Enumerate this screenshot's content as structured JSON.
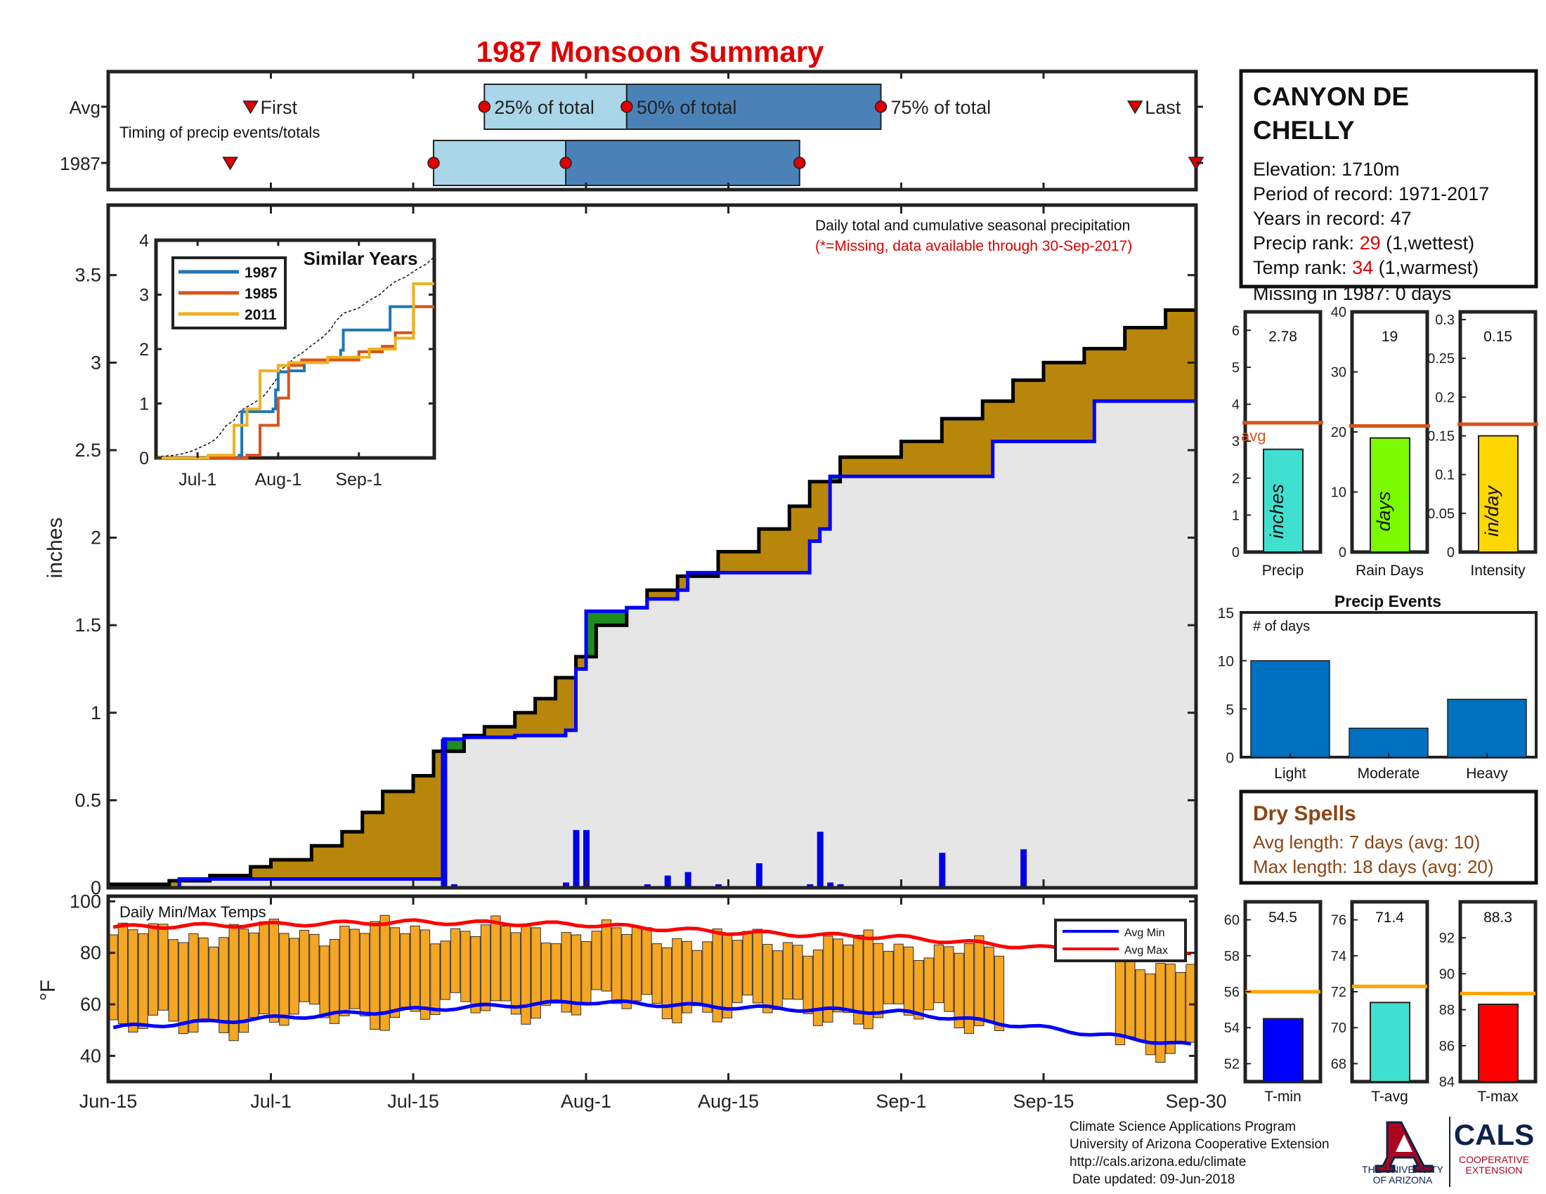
{
  "title": "1987 Monsoon Summary",
  "timing": {
    "avg_label": "Avg",
    "year_label": "1987",
    "caption": "Timing of precip events/totals",
    "first_label": "First",
    "last_label": "Last",
    "p25_label": "25% of total",
    "p50_label": "50% of total",
    "p75_label": "75% of total",
    "avg_dates": {
      "first": "2017-06-29",
      "p25": "2017-07-22",
      "p50": "2017-08-05",
      "p75": "2017-08-30",
      "last": "2017-09-24"
    },
    "year_dates": {
      "first": "2017-06-27",
      "p25": "2017-07-17",
      "p50": "2017-07-30",
      "p75": "2017-08-22",
      "last": "2017-09-30"
    },
    "colors": {
      "q1": "#a9d6e8",
      "q2": "#4a82b8",
      "marker": "#e00000"
    }
  },
  "station": {
    "name_line1": "CANYON DE",
    "name_line2": "CHELLY",
    "elevation": "Elevation: 1710m",
    "period": "Period of record: 1971-2017",
    "years": "Years in record: 47",
    "precip_rank_label": "Precip rank: ",
    "precip_rank": "29",
    "precip_rank_note": " (1,wettest)",
    "temp_rank_label": "Temp rank: ",
    "temp_rank": "34",
    "temp_rank_note": " (1,warmest)",
    "missing": "Missing in 1987: 0 days"
  },
  "main_chart": {
    "note1": "Daily total and cumulative seasonal precipitation",
    "note2": "(*=Missing, data available through 30-Sep-2017)",
    "ylabel": "inches",
    "y_ticks": [
      "0",
      "0.5",
      "1",
      "1.5",
      "2",
      "2.5",
      "3",
      "3.5"
    ],
    "x_ticks": [
      "Jun-15",
      "Jul-1",
      "Jul-15",
      "Aug-1",
      "Aug-15",
      "Sep-1",
      "Sep-15",
      "Sep-30"
    ],
    "colors": {
      "above": "#b8860b",
      "below": "#1e8c1e",
      "fill": "#e6e6e6",
      "line": "#0000ff",
      "avg": "#000000",
      "bars": "#0000e6"
    }
  },
  "similar_years": {
    "title": "Similar Years",
    "legend": [
      "1987",
      "1985",
      "2011"
    ],
    "colors": [
      "#1f77b4",
      "#d95319",
      "#edb120"
    ],
    "y_ticks": [
      "0",
      "1",
      "2",
      "3",
      "4"
    ],
    "x_ticks": [
      "Jul-1",
      "Aug-1",
      "Sep-1"
    ]
  },
  "temp_chart": {
    "label": "Daily Min/Max Temps",
    "ylabel": "°F",
    "y_ticks": [
      "40",
      "60",
      "80",
      "100"
    ],
    "legend_min": "Avg Min",
    "legend_max": "Avg Max",
    "colors": {
      "bars": "#f5a623",
      "min": "#0000ff",
      "max": "#ff0000"
    }
  },
  "small_bars": [
    {
      "label": "Precip",
      "value_text": "2.78",
      "bar_label": "inches",
      "avg_label": "avg",
      "y_ticks": [
        "0",
        "1",
        "2",
        "3",
        "4",
        "5",
        "6"
      ],
      "color": "#40e0d0",
      "avg_color": "#d95319"
    },
    {
      "label": "Rain Days",
      "value_text": "19",
      "bar_label": "days",
      "y_ticks": [
        "0",
        "10",
        "20",
        "30",
        "40"
      ],
      "color": "#7cfc00",
      "avg_color": "#d95319"
    },
    {
      "label": "Intensity",
      "value_text": "0.15",
      "bar_label": "in/day",
      "y_ticks": [
        "0",
        "0.05",
        "0.1",
        "0.15",
        "0.2",
        "0.25",
        "0.3"
      ],
      "color": "#ffd700",
      "avg_color": "#d95319"
    }
  ],
  "precip_events": {
    "title": "Precip Events",
    "ylabel": "# of days",
    "y_ticks": [
      "0",
      "5",
      "10",
      "15"
    ],
    "categories": [
      "Light",
      "Moderate",
      "Heavy"
    ],
    "values": [
      10,
      3,
      6
    ],
    "color": "#0070c0"
  },
  "dry_spells": {
    "title": "Dry Spells",
    "avg_length": "Avg length: 7 days (avg: 10)",
    "max_length": "Max length: 18 days (avg: 20)"
  },
  "temp_bars": [
    {
      "label": "T-min",
      "value_text": "54.5",
      "y_ticks": [
        "52",
        "54",
        "56",
        "58",
        "60"
      ],
      "color": "#0000ff",
      "avg_color": "#ffa500"
    },
    {
      "label": "T-avg",
      "value_text": "71.4",
      "y_ticks": [
        "68",
        "70",
        "72",
        "74",
        "76"
      ],
      "color": "#40e0d0",
      "avg_color": "#ffa500"
    },
    {
      "label": "T-max",
      "value_text": "88.3",
      "y_ticks": [
        "84",
        "86",
        "88",
        "90",
        "92"
      ],
      "color": "#ff0000",
      "avg_color": "#ffa500"
    }
  ],
  "footer": {
    "line1": "Climate Science Applications Program",
    "line2": "University of Arizona Cooperative Extension",
    "line3": "http://cals.arizona.edu/climate",
    "line4": "Date updated: 09-Jun-2018",
    "ua_name1": "THE UNIVERSITY",
    "ua_name2": "OF ARIZONA",
    "cals": "CALS",
    "cals_sub1": "COOPERATIVE",
    "cals_sub2": "EXTENSION"
  },
  "chart_data": [
    {
      "type": "area",
      "title": "1987 Monsoon Summary",
      "xlabel": "",
      "ylabel": "inches",
      "xlim": [
        "2017-06-15",
        "2017-09-30"
      ],
      "ylim": [
        0,
        3.9
      ],
      "series": [
        {
          "name": "",
          "x": [
            "2017-06-15",
            "2017-06-21",
            "2017-06-25",
            "2017-06-29",
            "2017-07-01",
            "2017-07-05",
            "2017-07-08",
            "2017-07-10",
            "2017-07-12",
            "2017-07-15",
            "2017-07-17",
            "2017-07-20",
            "2017-07-22",
            "2017-07-25",
            "2017-07-27",
            "2017-07-29",
            "2017-07-31",
            "2017-08-02",
            "2017-08-05",
            "2017-08-07",
            "2017-08-10",
            "2017-08-14",
            "2017-08-18",
            "2017-08-21",
            "2017-08-23",
            "2017-08-26",
            "2017-09-01",
            "2017-09-05",
            "2017-09-09",
            "2017-09-12",
            "2017-09-15",
            "2017-09-19",
            "2017-09-23",
            "2017-09-27",
            "2017-09-30"
          ],
          "y": [
            0.02,
            0.04,
            0.07,
            0.12,
            0.16,
            0.24,
            0.32,
            0.43,
            0.55,
            0.64,
            0.78,
            0.87,
            0.92,
            1.0,
            1.08,
            1.2,
            1.32,
            1.5,
            1.6,
            1.7,
            1.78,
            1.92,
            2.05,
            2.18,
            2.32,
            2.46,
            2.55,
            2.68,
            2.78,
            2.9,
            3.0,
            3.08,
            3.2,
            3.3,
            3.42
          ]
        },
        {
          "name": "",
          "x": [
            "2017-06-15",
            "2017-06-22",
            "2017-07-17",
            "2017-07-18",
            "2017-07-20",
            "2017-07-25",
            "2017-07-30",
            "2017-07-31",
            "2017-08-01",
            "2017-08-05",
            "2017-08-07",
            "2017-08-10",
            "2017-08-11",
            "2017-08-21",
            "2017-08-23",
            "2017-08-24",
            "2017-08-25",
            "2017-09-05",
            "2017-09-10",
            "2017-09-15",
            "2017-09-20",
            "2017-09-30"
          ],
          "y": [
            0.0,
            0.05,
            0.05,
            0.85,
            0.86,
            0.87,
            0.9,
            1.25,
            1.58,
            1.6,
            1.65,
            1.7,
            1.8,
            1.8,
            1.98,
            2.05,
            2.35,
            2.35,
            2.55,
            2.55,
            2.78,
            2.78
          ]
        }
      ],
      "daily_bars": {
        "x": [
          "2017-07-18",
          "2017-07-19",
          "2017-07-22",
          "2017-07-30",
          "2017-07-31",
          "2017-08-01",
          "2017-08-05",
          "2017-08-07",
          "2017-08-09",
          "2017-08-11",
          "2017-08-14",
          "2017-08-18",
          "2017-08-23",
          "2017-08-24",
          "2017-08-25",
          "2017-08-26",
          "2017-09-05",
          "2017-09-13"
        ],
        "values": [
          0.85,
          0.02,
          0.01,
          0.03,
          0.33,
          0.33,
          0.01,
          0.02,
          0.07,
          0.09,
          0.02,
          0.14,
          0.02,
          0.32,
          0.03,
          0.02,
          0.2,
          0.22
        ]
      }
    },
    {
      "type": "line",
      "title": "Similar Years",
      "xlabel": "",
      "ylabel": "",
      "ylim": [
        0,
        4
      ],
      "series": [
        {
          "name": "1987",
          "x": [
            "06-15",
            "07-17",
            "07-18",
            "07-30",
            "07-31",
            "08-01",
            "08-05",
            "08-11",
            "08-25",
            "08-26",
            "09-05",
            "09-13",
            "09-30"
          ],
          "y": [
            0,
            0.05,
            0.85,
            0.9,
            1.25,
            1.58,
            1.6,
            1.8,
            1.98,
            2.35,
            2.35,
            2.78,
            2.78
          ]
        },
        {
          "name": "1985",
          "x": [
            "06-15",
            "07-20",
            "07-25",
            "08-01",
            "08-05",
            "08-10",
            "09-01",
            "09-10",
            "09-15",
            "09-22",
            "09-30"
          ],
          "y": [
            0,
            0.05,
            0.6,
            1.1,
            1.7,
            1.8,
            1.95,
            2.05,
            2.3,
            2.78,
            2.78
          ]
        },
        {
          "name": "2011",
          "x": [
            "06-15",
            "07-05",
            "07-15",
            "07-20",
            "07-25",
            "08-01",
            "08-05",
            "08-20",
            "09-05",
            "09-15",
            "09-22",
            "09-30"
          ],
          "y": [
            0,
            0.05,
            0.6,
            0.9,
            1.6,
            1.7,
            1.75,
            1.85,
            2.0,
            2.2,
            3.2,
            3.2
          ]
        }
      ],
      "x": [
        "Jul-1",
        "Aug-1",
        "Sep-1"
      ]
    },
    {
      "type": "bar",
      "title": "Daily Min/Max Temps",
      "xlabel": "",
      "ylabel": "°F",
      "ylim": [
        30,
        102
      ],
      "series": [
        {
          "name": "Avg Min",
          "x": [
            "2017-06-15",
            "2017-07-15",
            "2017-08-01",
            "2017-08-15",
            "2017-09-01",
            "2017-09-15",
            "2017-09-30"
          ],
          "y": [
            51,
            58,
            61,
            59,
            57,
            51,
            44
          ]
        },
        {
          "name": "Avg Max",
          "x": [
            "2017-06-15",
            "2017-07-15",
            "2017-08-01",
            "2017-08-15",
            "2017-09-01",
            "2017-09-15",
            "2017-09-30"
          ],
          "y": [
            90,
            92,
            91,
            88,
            86,
            82,
            79
          ]
        }
      ]
    },
    {
      "type": "bar",
      "title": "Precip Events",
      "categories": [
        "Light",
        "Moderate",
        "Heavy"
      ],
      "values": [
        10,
        3,
        6
      ],
      "ylabel": "# of days",
      "ylim": [
        0,
        15
      ]
    },
    {
      "type": "bar",
      "title": "",
      "categories": [
        "Precip",
        "Rain Days",
        "Intensity"
      ],
      "series": [
        {
          "name": "",
          "values": [
            2.78,
            19,
            0.15
          ]
        },
        {
          "name": "avg",
          "values": [
            3.5,
            21,
            0.165
          ]
        }
      ]
    },
    {
      "type": "bar",
      "title": "",
      "categories": [
        "T-min",
        "T-avg",
        "T-max"
      ],
      "series": [
        {
          "name": "",
          "values": [
            54.5,
            71.4,
            88.3
          ]
        },
        {
          "name": "",
          "values": [
            56.0,
            72.3,
            88.9
          ]
        }
      ]
    }
  ]
}
